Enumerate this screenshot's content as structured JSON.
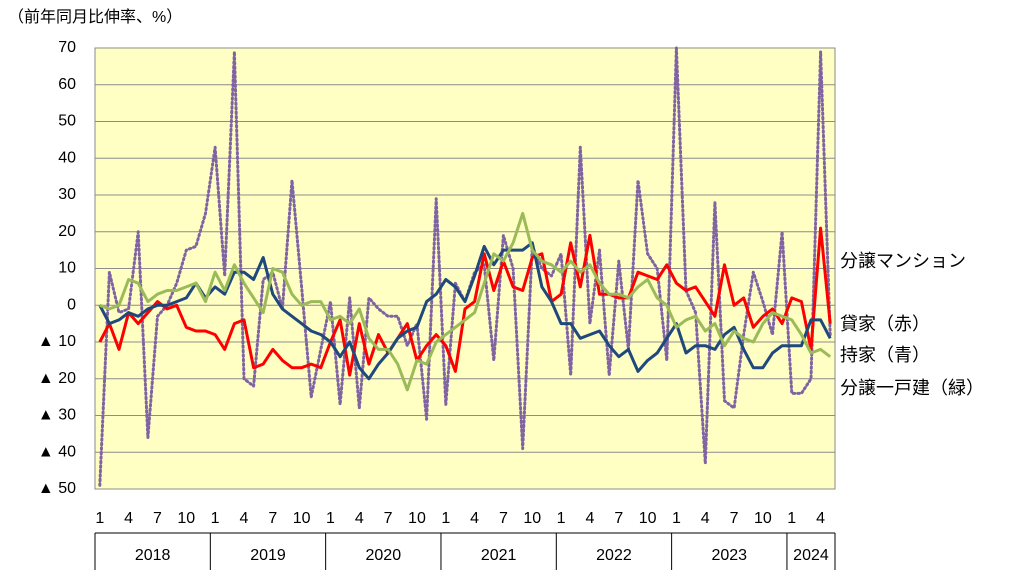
{
  "chart_data": {
    "type": "line",
    "y_unit_label": "（前年同月比伸率、%）",
    "categories": [
      "1",
      null,
      null,
      "4",
      null,
      null,
      "7",
      null,
      null,
      "10",
      null,
      null,
      "1",
      null,
      null,
      "4",
      null,
      null,
      "7",
      null,
      null,
      "10",
      null,
      null,
      "1",
      null,
      null,
      "4",
      null,
      null,
      "7",
      null,
      null,
      "10",
      null,
      null,
      "1",
      null,
      null,
      "4",
      null,
      null,
      "7",
      null,
      null,
      "10",
      null,
      null,
      "1",
      null,
      null,
      "4",
      null,
      null,
      "7",
      null,
      null,
      "10",
      null,
      null,
      "1",
      null,
      null,
      "4",
      null,
      null,
      "7",
      null,
      null,
      "10",
      null,
      null,
      "1",
      null,
      null,
      "4",
      null
    ],
    "years": [
      "2018",
      "2019",
      "2020",
      "2021",
      "2022",
      "2023",
      "2024"
    ],
    "ylim": [
      -50,
      70
    ],
    "yticks": [
      70,
      60,
      50,
      40,
      30,
      20,
      10,
      0,
      {
        "value": -10,
        "label": "▲ 10"
      },
      {
        "value": -20,
        "label": "▲ 20"
      },
      {
        "value": -30,
        "label": "▲ 30"
      },
      {
        "value": -40,
        "label": "▲ 40"
      },
      {
        "value": -50,
        "label": "▲ 50"
      }
    ],
    "grid": true,
    "series": [
      {
        "name": "分譲マンション",
        "color": "#8064a2",
        "dotted": true,
        "values": [
          -49,
          9,
          -2,
          -1,
          20,
          -36,
          -3,
          0,
          6,
          15,
          16,
          25,
          43,
          8,
          69,
          -20,
          -22,
          7,
          9,
          -1,
          34,
          5,
          -25,
          -12,
          1,
          -27,
          2,
          -28,
          2,
          -1,
          -3,
          -3,
          -11,
          -5,
          -31,
          29,
          -27,
          6,
          1,
          9,
          11,
          -15,
          19,
          10,
          -39,
          16,
          10,
          8,
          14,
          -19,
          43,
          -5,
          15,
          -19,
          12,
          -12,
          34,
          14,
          10,
          -15,
          70,
          4,
          -2,
          -43,
          28,
          -26,
          -28,
          -8,
          9,
          1,
          -8,
          20,
          -24,
          -24,
          -20,
          69,
          -8
        ]
      },
      {
        "name": "貸家（赤）",
        "color": "#ff0000",
        "values": [
          -10,
          -5,
          -12,
          -2,
          -5,
          -2,
          1,
          -1,
          0,
          -6,
          -7,
          -7,
          -8,
          -12,
          -5,
          -4,
          -17,
          -16,
          -12,
          -15,
          -17,
          -17,
          -16,
          -17,
          -10,
          -4,
          -19,
          -5,
          -16,
          -8,
          -13,
          -9,
          -5,
          -15,
          -11,
          -8,
          -11,
          -18,
          -1,
          1,
          14,
          4,
          12,
          5,
          4,
          13,
          14,
          1,
          3,
          17,
          5,
          19,
          3,
          3,
          2,
          2,
          9,
          8,
          7,
          11,
          6,
          4,
          5,
          1,
          -3,
          11,
          0,
          2,
          -6,
          -3,
          -1,
          -5,
          2,
          1,
          -12,
          21,
          -5
        ]
      },
      {
        "name": "持家（青）",
        "color": "#1f497d",
        "values": [
          0,
          -5,
          -4,
          -2,
          -3,
          -1,
          0,
          0,
          1,
          2,
          6,
          2,
          5,
          3,
          9,
          9,
          7,
          13,
          3,
          -1,
          -3,
          -5,
          -7,
          -8,
          -10,
          -14,
          -10,
          -17,
          -20,
          -16,
          -13,
          -9,
          -7,
          -6,
          1,
          3,
          7,
          5,
          1,
          8,
          16,
          11,
          15,
          15,
          15,
          17,
          5,
          1,
          -5,
          -5,
          -9,
          -8,
          -7,
          -11,
          -14,
          -12,
          -18,
          -15,
          -13,
          -9,
          -5,
          -13,
          -11,
          -11,
          -12,
          -8,
          -6,
          -12,
          -17,
          -17,
          -13,
          -11,
          -11,
          -11,
          -4,
          -4,
          -9
        ]
      },
      {
        "name": "分譲一戸建（緑）",
        "color": "#9bbb59",
        "values": [
          0,
          -1,
          0,
          7,
          6,
          1,
          3,
          4,
          4,
          5,
          6,
          1,
          9,
          4,
          11,
          6,
          2,
          -2,
          10,
          9,
          3,
          0,
          1,
          1,
          -4,
          -3,
          -5,
          -1,
          -9,
          -12,
          -12,
          -16,
          -23,
          -15,
          -16,
          -10,
          -8,
          -6,
          -4,
          -2,
          6,
          14,
          12,
          17,
          25,
          15,
          12,
          11,
          9,
          12,
          9,
          11,
          6,
          3,
          3,
          2,
          5,
          7,
          2,
          0,
          -6,
          -4,
          -3,
          -7,
          -5,
          -11,
          -7,
          -9,
          -10,
          -5,
          -2,
          -3,
          -4,
          -8,
          -13,
          -12,
          -14
        ]
      }
    ]
  }
}
